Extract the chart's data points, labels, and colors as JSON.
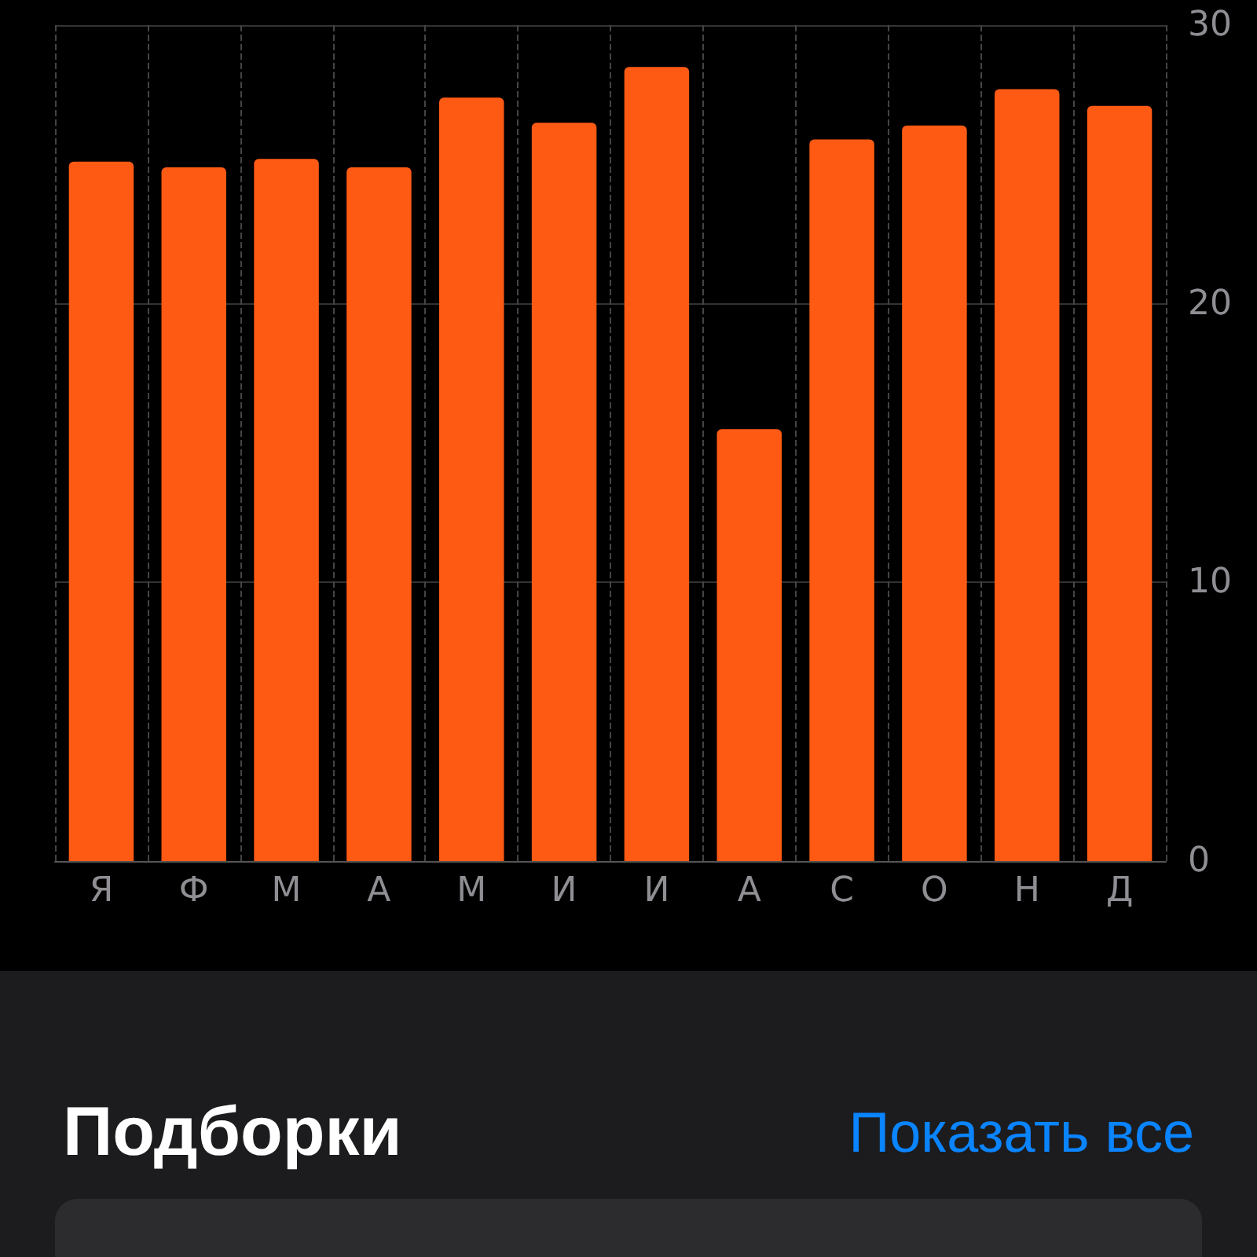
{
  "chart_data": {
    "type": "bar",
    "categories": [
      "Я",
      "Ф",
      "М",
      "А",
      "М",
      "И",
      "И",
      "А",
      "С",
      "О",
      "Н",
      "Д"
    ],
    "values": [
      25.1,
      24.9,
      25.2,
      24.9,
      27.4,
      26.5,
      28.5,
      15.5,
      25.9,
      26.4,
      27.7,
      27.1
    ],
    "color": "#ff5a14",
    "ylim": [
      0,
      30
    ],
    "yticks": [
      0,
      10,
      20,
      30
    ],
    "grid": true,
    "annotations": [
      "Подборки",
      "Показать все"
    ]
  }
}
